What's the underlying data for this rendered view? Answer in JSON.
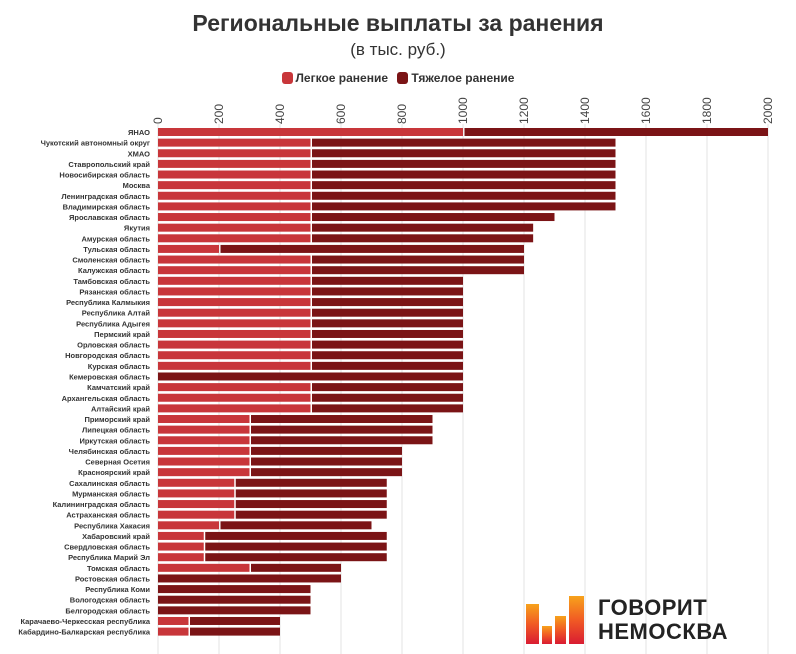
{
  "chart_data": {
    "type": "bar",
    "orientation": "horizontal",
    "stacked": true,
    "title": "Региональные выплаты за ранения",
    "subtitle": "(в тыс. руб.)",
    "xlim": [
      0,
      2000
    ],
    "x_ticks": [
      0,
      200,
      400,
      600,
      800,
      1000,
      1200,
      1400,
      1600,
      1800,
      2000
    ],
    "grid": true,
    "legend_position": "top",
    "categories": [
      "ЯНАО",
      "Чукотский автономный округ",
      "ХМАО",
      "Ставропольский край",
      "Новосибирская область",
      "Москва",
      "Ленинградская область",
      "Владимирская область",
      "Ярославская область",
      "Якутия",
      "Амурская область",
      "Тульская область",
      "Смоленская область",
      "Калужская область",
      "Тамбовская область",
      "Рязанская область",
      "Республика Калмыкия",
      "Республика Алтай",
      "Республика Адыгея",
      "Пермский край",
      "Орловская область",
      "Новгородская область",
      "Курская область",
      "Кемеровская область",
      "Камчатский край",
      "Архангельская область",
      "Алтайский край",
      "Приморский край",
      "Липецкая область",
      "Иркутская область",
      "Челябинская область",
      "Северная Осетия",
      "Красноярский край",
      "Сахалинская область",
      "Мурманская область",
      "Калининградская область",
      "Астраханская область",
      "Республика Хакасия",
      "Хабаровский край",
      "Свердловская область",
      "Республика Марий Эл",
      "Томская область",
      "Ростовская область",
      "Республика Коми",
      "Вологодская область",
      "Белгородская область",
      "Карачаево-Черкесская республика",
      "Кабардино-Балкарская республика"
    ],
    "series": [
      {
        "name": "Легкое ранение",
        "color": "#c8363a",
        "values": [
          1000,
          500,
          500,
          500,
          500,
          500,
          500,
          500,
          500,
          500,
          500,
          200,
          500,
          500,
          500,
          500,
          500,
          500,
          500,
          500,
          500,
          500,
          500,
          0,
          500,
          500,
          500,
          300,
          300,
          300,
          300,
          300,
          300,
          250,
          250,
          250,
          250,
          200,
          150,
          150,
          150,
          300,
          0,
          0,
          0,
          0,
          100,
          100
        ]
      },
      {
        "name": "Тяжелое ранение",
        "color": "#7b1416",
        "values": [
          1000,
          1000,
          1000,
          1000,
          1000,
          1000,
          1000,
          1000,
          800,
          730,
          730,
          1000,
          700,
          700,
          500,
          500,
          500,
          500,
          500,
          500,
          500,
          500,
          500,
          1000,
          500,
          500,
          500,
          600,
          600,
          600,
          500,
          500,
          500,
          500,
          500,
          500,
          500,
          500,
          600,
          600,
          600,
          300,
          600,
          500,
          500,
          500,
          300,
          300
        ]
      }
    ]
  },
  "logo": {
    "line1": "ГОВОРИТ",
    "line2": "НЕМОСКВА",
    "colors": [
      "#f5a623",
      "#f26522",
      "#e8262b",
      "#d4145a"
    ]
  }
}
